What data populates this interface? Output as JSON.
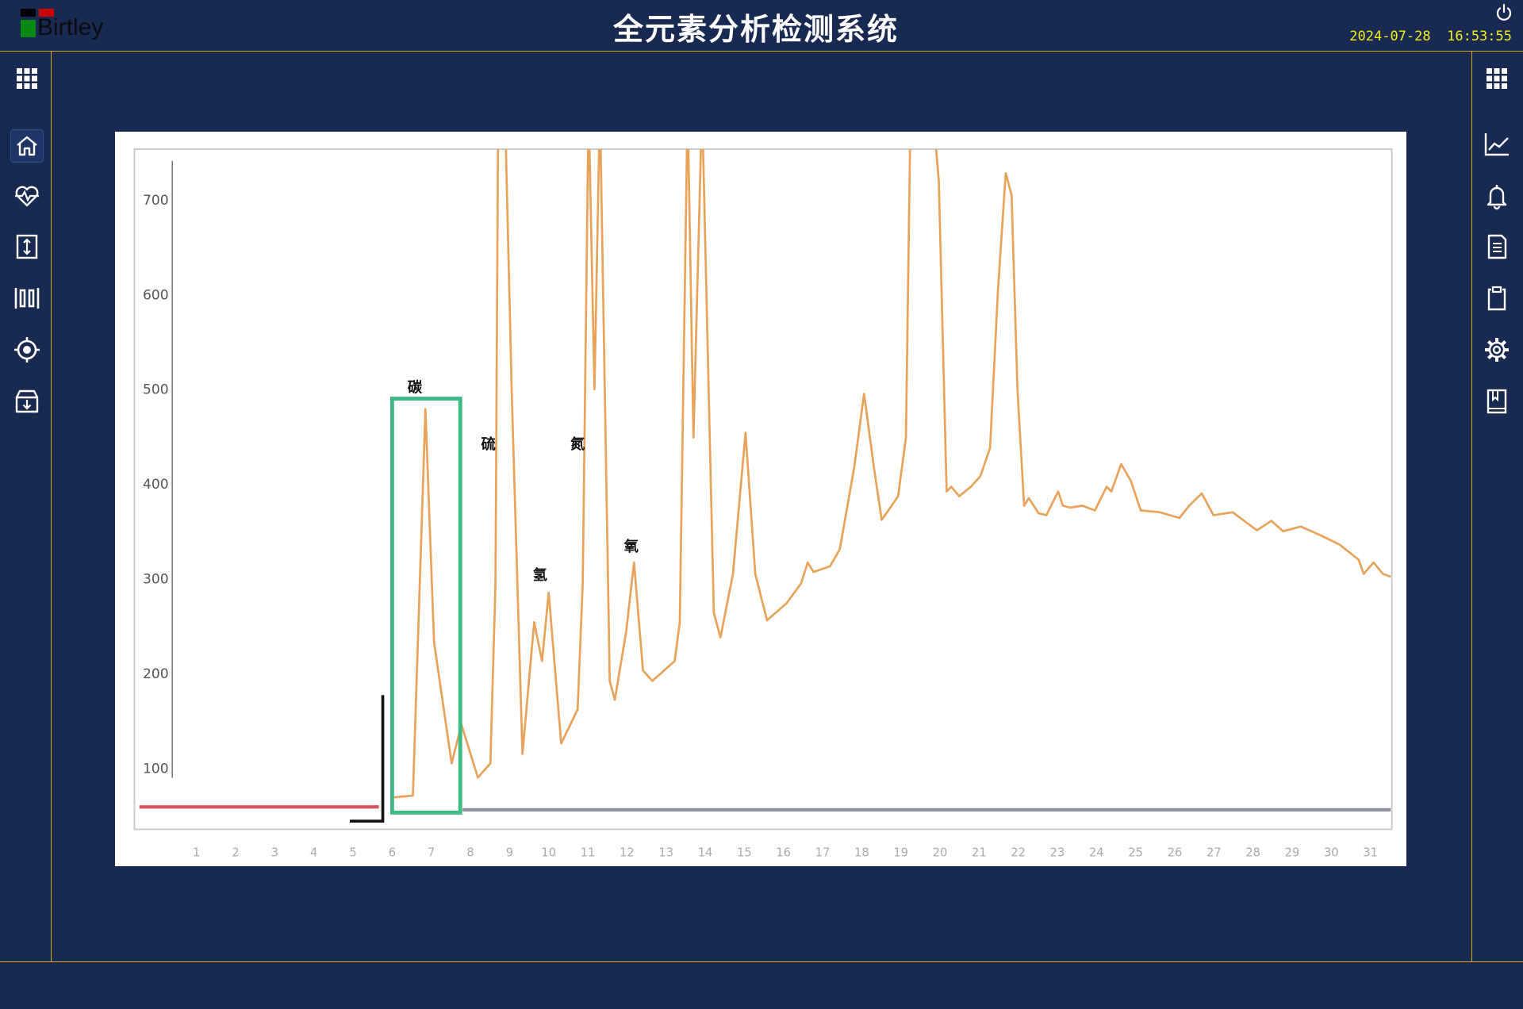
{
  "header": {
    "logo_text": "Birtley",
    "title": "全元素分析检测系统",
    "date": "2024-07-28",
    "time": "16:53:55",
    "power_icon": "power-icon"
  },
  "left_sidebar": {
    "items": [
      {
        "icon": "grid-icon",
        "selected": false
      },
      {
        "icon": "home-icon",
        "selected": true
      },
      {
        "icon": "heart-pulse-icon",
        "selected": false
      },
      {
        "icon": "vertical-arrows-icon",
        "selected": false
      },
      {
        "icon": "barcode-icon",
        "selected": false
      },
      {
        "icon": "target-icon",
        "selected": false
      },
      {
        "icon": "archive-download-icon",
        "selected": false
      }
    ]
  },
  "right_sidebar": {
    "items": [
      {
        "icon": "grid-icon"
      },
      {
        "icon": "line-chart-icon"
      },
      {
        "icon": "bell-icon"
      },
      {
        "icon": "document-icon"
      },
      {
        "icon": "clipboard-icon"
      },
      {
        "icon": "gear-icon"
      },
      {
        "icon": "book-icon"
      }
    ]
  },
  "colors": {
    "background": "#192a52",
    "accent_line": "#d9a91a",
    "clock": "#f4f014",
    "trace": "#e8a25a",
    "highlight_box": "#3dbb83",
    "baseline_red": "#d9545a"
  },
  "chart_data": {
    "type": "line",
    "xlim": [
      -0.6,
      31.55
    ],
    "ylim": [
      36,
      753
    ],
    "x_ticks": [
      1,
      2,
      3,
      4,
      5,
      6,
      7,
      8,
      9,
      10,
      11,
      12,
      13,
      14,
      15,
      16,
      17,
      18,
      19,
      20,
      21,
      22,
      23,
      24,
      25,
      26,
      27,
      28,
      29,
      30,
      31
    ],
    "y_ticks": [
      100,
      200,
      300,
      400,
      500,
      600,
      700
    ],
    "grid": false,
    "series": [
      {
        "color": "#e8a25a",
        "points": [
          [
            6.03,
            69
          ],
          [
            6.53,
            71
          ],
          [
            6.85,
            479
          ],
          [
            7.07,
            233
          ],
          [
            7.52,
            105
          ],
          [
            7.77,
            146
          ],
          [
            8.19,
            90
          ],
          [
            8.51,
            105
          ],
          [
            8.64,
            295
          ],
          [
            8.71,
            800
          ],
          [
            8.88,
            800
          ],
          [
            9.06,
            490
          ],
          [
            9.33,
            115
          ],
          [
            9.63,
            254
          ],
          [
            9.83,
            213
          ],
          [
            10.0,
            285
          ],
          [
            10.32,
            126
          ],
          [
            10.74,
            162
          ],
          [
            10.87,
            295
          ],
          [
            11.02,
            800
          ],
          [
            11.17,
            500
          ],
          [
            11.31,
            800
          ],
          [
            11.56,
            192
          ],
          [
            11.69,
            172
          ],
          [
            11.98,
            244
          ],
          [
            12.18,
            317
          ],
          [
            12.41,
            203
          ],
          [
            12.65,
            192
          ],
          [
            13.22,
            213
          ],
          [
            13.35,
            254
          ],
          [
            13.55,
            800
          ],
          [
            13.7,
            449
          ],
          [
            13.92,
            800
          ],
          [
            14.22,
            264
          ],
          [
            14.39,
            238
          ],
          [
            14.71,
            305
          ],
          [
            15.03,
            454
          ],
          [
            15.28,
            305
          ],
          [
            15.58,
            256
          ],
          [
            16.08,
            274
          ],
          [
            16.45,
            295
          ],
          [
            16.62,
            317
          ],
          [
            16.77,
            307
          ],
          [
            17.19,
            313
          ],
          [
            17.44,
            331
          ],
          [
            17.81,
            418
          ],
          [
            18.06,
            495
          ],
          [
            18.31,
            418
          ],
          [
            18.51,
            362
          ],
          [
            18.68,
            372
          ],
          [
            18.93,
            387
          ],
          [
            19.13,
            449
          ],
          [
            19.25,
            800
          ],
          [
            19.6,
            900
          ],
          [
            19.97,
            720
          ],
          [
            20.17,
            392
          ],
          [
            20.29,
            397
          ],
          [
            20.49,
            387
          ],
          [
            20.79,
            397
          ],
          [
            21.03,
            408
          ],
          [
            21.28,
            438
          ],
          [
            21.48,
            603
          ],
          [
            21.68,
            728
          ],
          [
            21.83,
            705
          ],
          [
            21.98,
            500
          ],
          [
            22.15,
            377
          ],
          [
            22.27,
            385
          ],
          [
            22.52,
            369
          ],
          [
            22.72,
            367
          ],
          [
            23.02,
            392
          ],
          [
            23.14,
            377
          ],
          [
            23.32,
            375
          ],
          [
            23.64,
            377
          ],
          [
            23.96,
            372
          ],
          [
            24.26,
            397
          ],
          [
            24.38,
            392
          ],
          [
            24.63,
            421
          ],
          [
            24.88,
            403
          ],
          [
            25.13,
            372
          ],
          [
            25.62,
            370
          ],
          [
            26.12,
            364
          ],
          [
            26.37,
            377
          ],
          [
            26.69,
            390
          ],
          [
            26.99,
            367
          ],
          [
            27.48,
            370
          ],
          [
            28.1,
            351
          ],
          [
            28.47,
            361
          ],
          [
            28.77,
            350
          ],
          [
            29.22,
            355
          ],
          [
            29.71,
            346
          ],
          [
            30.21,
            336
          ],
          [
            30.7,
            320
          ],
          [
            30.83,
            305
          ],
          [
            31.08,
            317
          ],
          [
            31.32,
            305
          ],
          [
            31.52,
            302
          ]
        ]
      }
    ],
    "baselines": [
      {
        "color": "#d9545a",
        "x": [
          -0.46,
          5.66
        ],
        "y": 59
      },
      {
        "color": "#8c8f9c",
        "x": [
          7.8,
          31.52
        ],
        "y": 56
      }
    ],
    "marker_line": {
      "x": 5.76,
      "y": [
        44,
        177
      ]
    },
    "highlight_box": {
      "x": [
        6.0,
        7.74
      ],
      "y": [
        53,
        490
      ]
    },
    "annotations": [
      {
        "text": "碳",
        "x": 6.58,
        "y": 503
      },
      {
        "text": "硫",
        "x": 8.46,
        "y": 443
      },
      {
        "text": "氢",
        "x": 9.78,
        "y": 305
      },
      {
        "text": "氮",
        "x": 10.74,
        "y": 443
      },
      {
        "text": "氧",
        "x": 12.11,
        "y": 335
      }
    ]
  }
}
